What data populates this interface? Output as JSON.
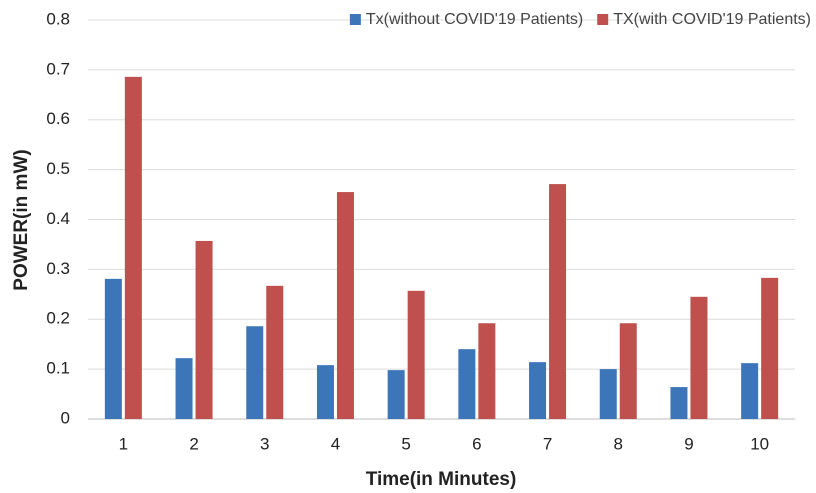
{
  "chart_data": {
    "type": "bar",
    "x_label": "Time(in Minutes)",
    "y_label": "POWER(in mW)",
    "categories": [
      "1",
      "2",
      "3",
      "4",
      "5",
      "6",
      "7",
      "8",
      "9",
      "10"
    ],
    "series": [
      {
        "name": "Tx(without COVID'19 Patients)",
        "color": "#3d76b8",
        "values": [
          0.281,
          0.122,
          0.186,
          0.108,
          0.098,
          0.14,
          0.114,
          0.1,
          0.064,
          0.112
        ]
      },
      {
        "name": "TX(with COVID'19 Patients)",
        "color": "#c0504d",
        "values": [
          0.686,
          0.357,
          0.267,
          0.455,
          0.257,
          0.192,
          0.471,
          0.192,
          0.245,
          0.283
        ]
      }
    ],
    "ylim": [
      0,
      0.8
    ],
    "yticks": [
      0,
      0.1,
      0.2,
      0.3,
      0.4,
      0.5,
      0.6,
      0.7,
      0.8
    ],
    "grid": true,
    "legend": "top-right"
  }
}
